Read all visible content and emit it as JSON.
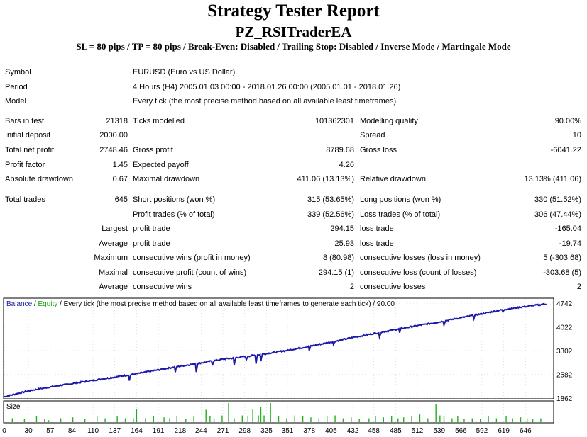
{
  "header": {
    "title": "Strategy Tester Report",
    "ea_name": "PZ_RSITraderEA",
    "settings": "SL = 80 pips / TP = 80 pips / Break-Even: Disabled / Trailing Stop: Disabled / Inverse Mode / Martingale Mode"
  },
  "info": {
    "symbol_label": "Symbol",
    "symbol_value": "EURUSD (Euro vs US Dollar)",
    "period_label": "Period",
    "period_value": "4 Hours (H4) 2005.01.03 00:00 - 2018.01.26 00:00 (2005.01.01 - 2018.01.26)",
    "model_label": "Model",
    "model_value": "Every tick (the most precise method based on all available least timeframes)"
  },
  "stats": {
    "bars_label": "Bars in test",
    "bars_value": "21318",
    "ticks_label": "Ticks modelled",
    "ticks_value": "101362301",
    "quality_label": "Modelling quality",
    "quality_value": "90.00%",
    "deposit_label": "Initial deposit",
    "deposit_value": "2000.00",
    "spread_label": "Spread",
    "spread_value": "10",
    "netprofit_label": "Total net profit",
    "netprofit_value": "2748.46",
    "grossprofit_label": "Gross profit",
    "grossprofit_value": "8789.68",
    "grossloss_label": "Gross loss",
    "grossloss_value": "-6041.22",
    "pf_label": "Profit factor",
    "pf_value": "1.45",
    "payoff_label": "Expected payoff",
    "payoff_value": "4.26",
    "absdd_label": "Absolute drawdown",
    "absdd_value": "0.67",
    "maxdd_label": "Maximal drawdown",
    "maxdd_value": "411.06 (13.13%)",
    "reldd_label": "Relative drawdown",
    "reldd_value": "13.13% (411.06)"
  },
  "trades": {
    "total_label": "Total trades",
    "total_value": "645",
    "short_label": "Short positions (won %)",
    "short_value": "315 (53.65%)",
    "long_label": "Long positions (won %)",
    "long_value": "330 (51.52%)",
    "profit_label": "Profit trades (% of total)",
    "profit_value": "339 (52.56%)",
    "loss_label": "Loss trades (% of total)",
    "loss_value": "306 (47.44%)",
    "largest_label": "Largest",
    "largest_profit_label": "profit trade",
    "largest_profit_value": "294.15",
    "largest_loss_label": "loss trade",
    "largest_loss_value": "-165.04",
    "average_label": "Average",
    "average_profit_label": "profit trade",
    "average_profit_value": "25.93",
    "average_loss_label": "loss trade",
    "average_loss_value": "-19.74",
    "maximum_label": "Maximum",
    "max_wins_label": "consecutive wins (profit in money)",
    "max_wins_value": "8 (80.98)",
    "max_losses_label": "consecutive losses (loss in money)",
    "max_losses_value": "5 (-303.68)",
    "maximal_label": "Maximal",
    "maximal_profit_label": "consecutive profit (count of wins)",
    "maximal_profit_value": "294.15 (1)",
    "maximal_loss_label": "consecutive loss (count of losses)",
    "maximal_loss_value": "-303.68 (5)",
    "average2_label": "Average",
    "avg_wins_label": "consecutive wins",
    "avg_wins_value": "2",
    "avg_losses_label": "consecutive losses",
    "avg_losses_value": "2"
  },
  "chart_data": {
    "type": "line",
    "legend": {
      "balance": "Balance",
      "sep1": " / ",
      "equity": "Equity",
      "rest": " / Every tick (the most precise method based on all available least timeframes to generate each tick) / 90.00"
    },
    "size_label": "Size",
    "y_ticks": [
      4742,
      4022,
      3302,
      2582,
      1862
    ],
    "x_ticks": [
      0,
      30,
      57,
      84,
      110,
      137,
      164,
      191,
      218,
      244,
      271,
      298,
      325,
      351,
      378,
      405,
      432,
      458,
      485,
      512,
      539,
      566,
      592,
      619,
      646
    ],
    "xlim": [
      0,
      680
    ],
    "ylim": [
      1862,
      4742
    ],
    "balance_points": [
      [
        0,
        1900
      ],
      [
        30,
        2080
      ],
      [
        57,
        2200
      ],
      [
        84,
        2300
      ],
      [
        110,
        2400
      ],
      [
        137,
        2500
      ],
      [
        164,
        2600
      ],
      [
        191,
        2720
      ],
      [
        218,
        2830
      ],
      [
        244,
        2930
      ],
      [
        271,
        3040
      ],
      [
        298,
        3120
      ],
      [
        325,
        3210
      ],
      [
        351,
        3310
      ],
      [
        378,
        3430
      ],
      [
        405,
        3560
      ],
      [
        432,
        3700
      ],
      [
        458,
        3820
      ],
      [
        485,
        3940
      ],
      [
        512,
        4060
      ],
      [
        539,
        4170
      ],
      [
        566,
        4300
      ],
      [
        592,
        4420
      ],
      [
        619,
        4550
      ],
      [
        646,
        4640
      ],
      [
        672,
        4720
      ]
    ],
    "drawdowns": [
      [
        155,
        180
      ],
      [
        212,
        150
      ],
      [
        238,
        250
      ],
      [
        258,
        120
      ],
      [
        285,
        230
      ],
      [
        300,
        120
      ],
      [
        312,
        260
      ],
      [
        318,
        210
      ],
      [
        378,
        120
      ],
      [
        408,
        100
      ],
      [
        465,
        160
      ],
      [
        490,
        120
      ],
      [
        545,
        110
      ],
      [
        582,
        90
      ],
      [
        618,
        80
      ]
    ],
    "size_bars": [
      [
        10,
        0.2
      ],
      [
        25,
        0.15
      ],
      [
        40,
        0.3
      ],
      [
        50,
        0.15
      ],
      [
        55,
        0.1
      ],
      [
        70,
        0.2
      ],
      [
        85,
        0.25
      ],
      [
        100,
        0.15
      ],
      [
        115,
        0.3
      ],
      [
        125,
        0.2
      ],
      [
        140,
        0.3
      ],
      [
        150,
        0.2
      ],
      [
        160,
        0.2
      ],
      [
        164,
        0.7
      ],
      [
        175,
        0.2
      ],
      [
        185,
        0.3
      ],
      [
        198,
        0.25
      ],
      [
        205,
        0.2
      ],
      [
        214,
        0.3
      ],
      [
        225,
        0.15
      ],
      [
        235,
        0.3
      ],
      [
        250,
        0.65
      ],
      [
        255,
        0.3
      ],
      [
        260,
        0.2
      ],
      [
        270,
        0.35
      ],
      [
        278,
        1.0
      ],
      [
        285,
        0.2
      ],
      [
        295,
        0.35
      ],
      [
        302,
        0.3
      ],
      [
        308,
        0.7
      ],
      [
        315,
        0.35
      ],
      [
        318,
        0.8
      ],
      [
        322,
        0.35
      ],
      [
        330,
        1.0
      ],
      [
        340,
        0.3
      ],
      [
        350,
        0.2
      ],
      [
        360,
        0.35
      ],
      [
        370,
        0.3
      ],
      [
        380,
        0.25
      ],
      [
        390,
        0.2
      ],
      [
        400,
        0.3
      ],
      [
        410,
        0.35
      ],
      [
        420,
        0.2
      ],
      [
        430,
        0.25
      ],
      [
        440,
        0.15
      ],
      [
        452,
        0.2
      ],
      [
        460,
        0.3
      ],
      [
        470,
        0.25
      ],
      [
        480,
        0.3
      ],
      [
        488,
        0.2
      ],
      [
        495,
        0.25
      ],
      [
        505,
        0.3
      ],
      [
        515,
        0.4
      ],
      [
        525,
        0.2
      ],
      [
        535,
        0.95
      ],
      [
        540,
        0.35
      ],
      [
        545,
        0.3
      ],
      [
        555,
        0.2
      ],
      [
        562,
        0.3
      ],
      [
        570,
        0.15
      ],
      [
        580,
        0.2
      ],
      [
        590,
        0.15
      ],
      [
        600,
        0.3
      ],
      [
        610,
        0.2
      ],
      [
        622,
        0.3
      ],
      [
        630,
        0.2
      ],
      [
        640,
        0.25
      ],
      [
        648,
        0.2
      ],
      [
        655,
        0.15
      ],
      [
        665,
        0.2
      ]
    ],
    "colors": {
      "balance": "#1a1aa6",
      "equity": "#10a010",
      "size": "#20b020",
      "grid": "#cfcfcf",
      "frame": "#000000"
    }
  }
}
